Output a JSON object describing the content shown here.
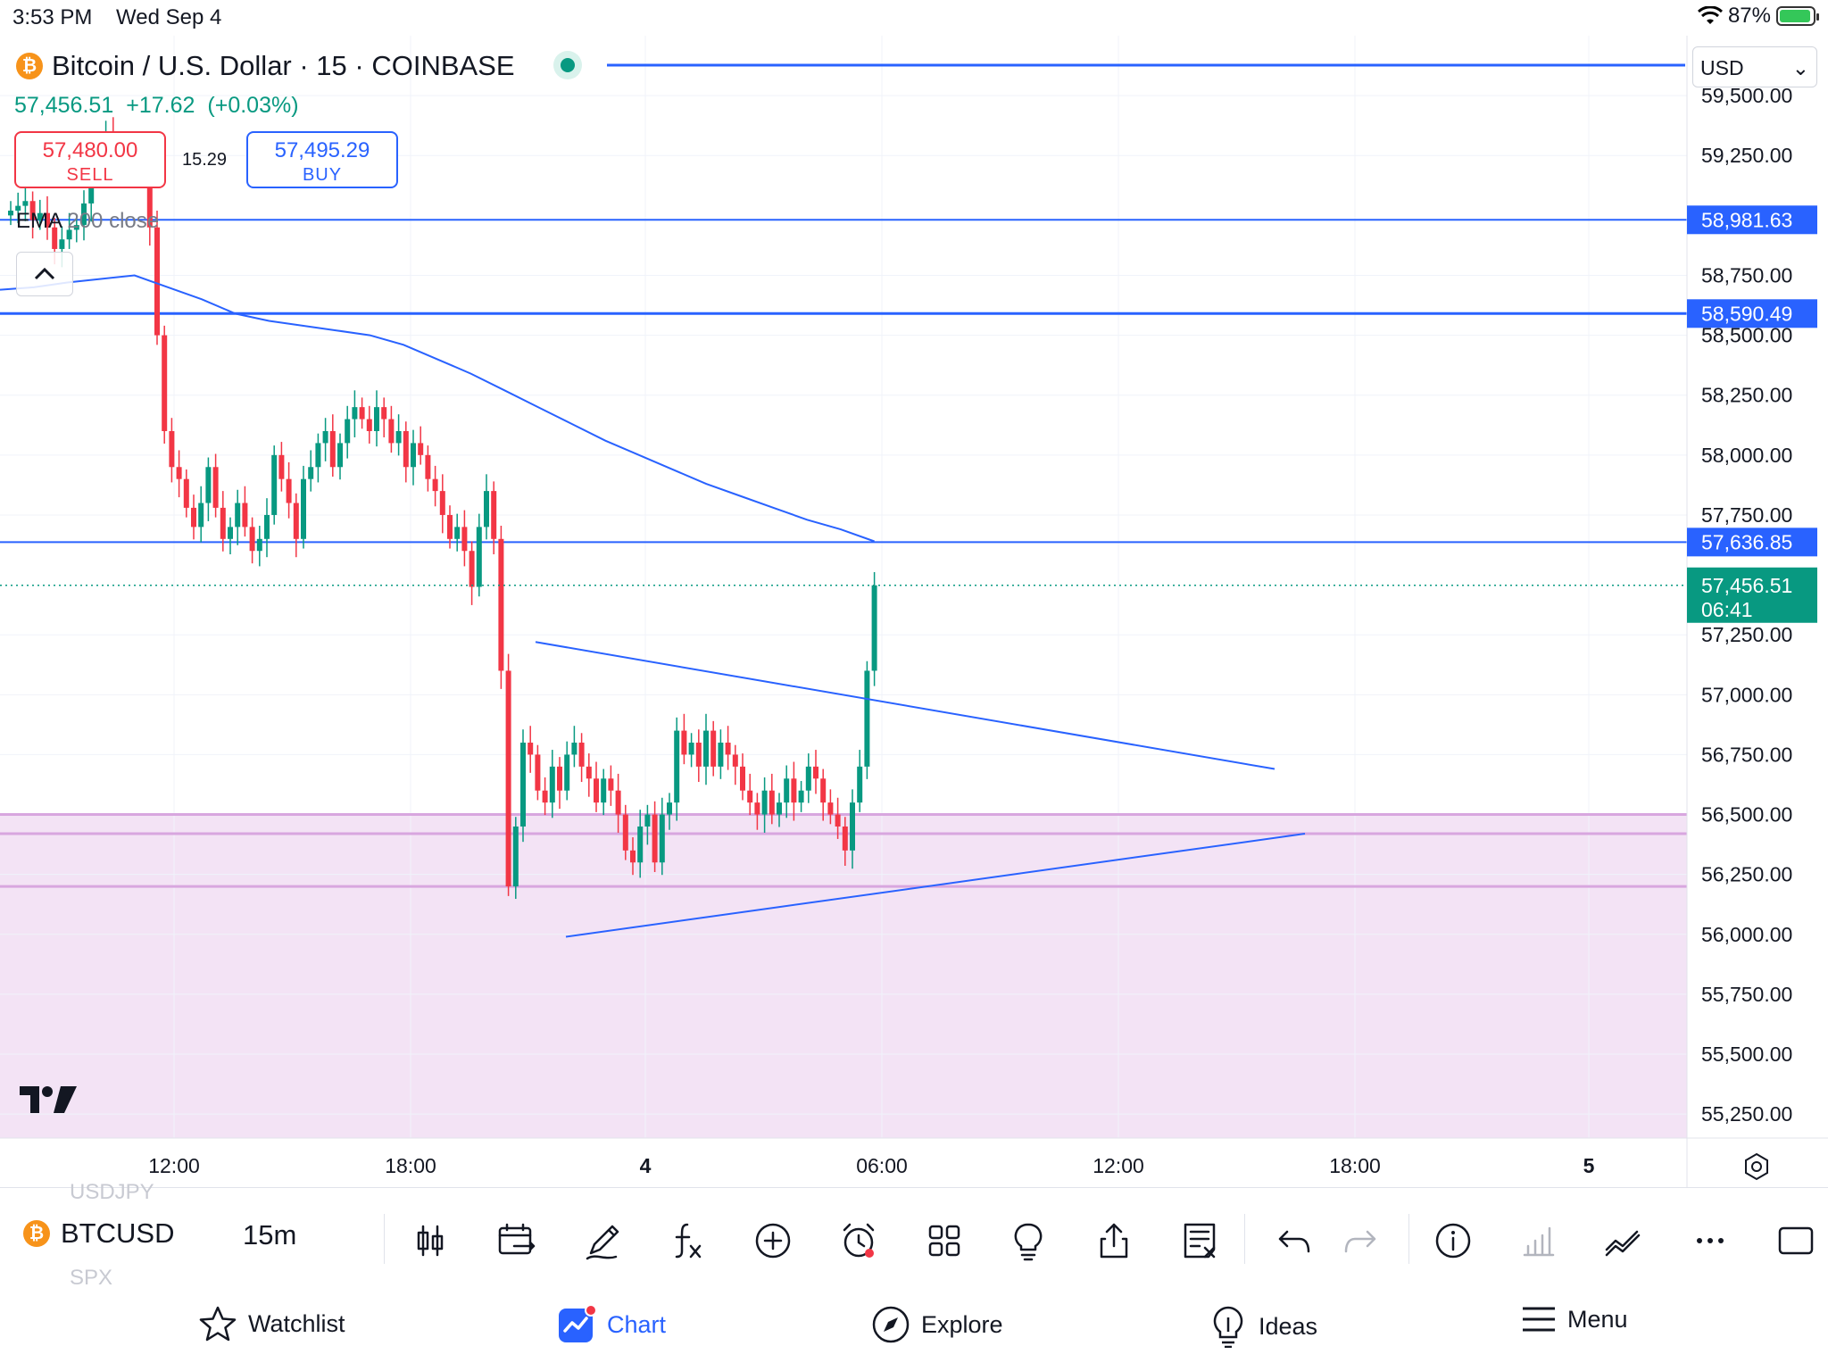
{
  "status_bar": {
    "time": "3:53 PM",
    "date": "Wed Sep 4",
    "battery": "87%"
  },
  "header": {
    "title": "Bitcoin / U.S. Dollar · 15 · COINBASE",
    "last_price": "57,456.51",
    "change": "+17.62",
    "change_pct": "(+0.03%)",
    "sell_price": "57,480.00",
    "sell_label": "SELL",
    "buy_price": "57,495.29",
    "buy_label": "BUY",
    "spread": "15.29",
    "indicator_name": "EMA",
    "indicator_params": "200 close",
    "currency": "USD"
  },
  "colors": {
    "up": "#089981",
    "down": "#f23645",
    "accent": "#2962ff",
    "zone": "#f3e3f5",
    "zone_line": "#d8a6df",
    "ema": "#2962ff"
  },
  "chart_data": {
    "type": "candlestick",
    "symbol": "BTCUSD",
    "interval": "15",
    "y_ticks": [
      "59,500.00",
      "59,250.00",
      "58,750.00",
      "58,500.00",
      "58,250.00",
      "58,000.00",
      "57,750.00",
      "57,250.00",
      "57,000.00",
      "56,750.00",
      "56,500.00",
      "56,250.00",
      "56,000.00",
      "55,750.00",
      "55,500.00",
      "55,250.00"
    ],
    "x_ticks": [
      "12:00",
      "18:00",
      "4",
      "06:00",
      "12:00",
      "18:00",
      "5"
    ],
    "ylim": [
      55150,
      59750
    ],
    "horizontal_levels": [
      {
        "price": 58981.63,
        "label": "58,981.63"
      },
      {
        "price": 58590.49,
        "label": "58,590.49"
      },
      {
        "price": 57636.85,
        "label": "57,636.85"
      }
    ],
    "current_price": {
      "label": "57,456.51",
      "countdown": "06:41"
    },
    "zone": {
      "top": 56500,
      "mid": 56420,
      "bottom": 56200
    },
    "trendlines": [
      {
        "from": [
          "Sep 3 21:15",
          57220
        ],
        "to": [
          "Sep 4 16:00",
          56690
        ]
      },
      {
        "from": [
          "Sep 3 22:00",
          55990
        ],
        "to": [
          "Sep 4 16:30",
          56420
        ]
      }
    ],
    "candles_close": [
      59020,
      59040,
      59060,
      58980,
      59010,
      58950,
      58860,
      58900,
      58940,
      58960,
      59050,
      59180,
      59280,
      59340,
      59300,
      59260,
      59180,
      59280,
      59250,
      58950,
      58500,
      58100,
      57950,
      57900,
      57780,
      57700,
      57800,
      57950,
      57780,
      57650,
      57700,
      57800,
      57700,
      57600,
      57650,
      57750,
      58000,
      57900,
      57800,
      57650,
      57900,
      57950,
      58050,
      58100,
      57950,
      58050,
      58150,
      58200,
      58150,
      58100,
      58200,
      58150,
      58050,
      58100,
      57950,
      58050,
      58000,
      57900,
      57850,
      57750,
      57650,
      57700,
      57600,
      57450,
      57700,
      57850,
      57650,
      57100,
      56200,
      56450,
      56800,
      56750,
      56600,
      56550,
      56700,
      56600,
      56750,
      56800,
      56700,
      56650,
      56550,
      56650,
      56600,
      56500,
      56350,
      56300,
      56450,
      56500,
      56300,
      56500,
      56550,
      56850,
      56750,
      56800,
      56700,
      56850,
      56700,
      56800,
      56750,
      56700,
      56600,
      56550,
      56500,
      56600,
      56500,
      56550,
      56650,
      56550,
      56600,
      56700,
      56650,
      56550,
      56500,
      56450,
      56350,
      56550,
      56700,
      57100,
      57456.51
    ],
    "ema200_close_series": [
      58690,
      58700,
      58720,
      58735,
      58750,
      58700,
      58650,
      58590,
      58560,
      58540,
      58520,
      58500,
      58460,
      58400,
      58340,
      58270,
      58200,
      58130,
      58060,
      58000,
      57940,
      57880,
      57830,
      57780,
      57730,
      57690,
      57640
    ]
  },
  "toolbar": {
    "ticker": "BTCUSD",
    "interval": "15m",
    "ghost_above": "USDJPY",
    "ghost_below": "SPX",
    "icons": [
      "candles-icon",
      "compare-dates-icon",
      "draw-icon",
      "indicators-icon",
      "add-icon",
      "alert-icon",
      "layout-icon",
      "ideas-bulb-icon",
      "share-icon",
      "object-tree-icon",
      "undo-icon",
      "redo-icon",
      "info-icon",
      "bar-stats-icon",
      "trend-icon",
      "more-icon",
      "fullscreen-icon"
    ]
  },
  "nav": [
    {
      "label": "Watchlist",
      "icon": "star-icon"
    },
    {
      "label": "Chart",
      "icon": "chart-icon",
      "active": true
    },
    {
      "label": "Explore",
      "icon": "compass-icon"
    },
    {
      "label": "Ideas",
      "icon": "bulb-icon"
    },
    {
      "label": "Menu",
      "icon": "hamburger-icon"
    }
  ]
}
